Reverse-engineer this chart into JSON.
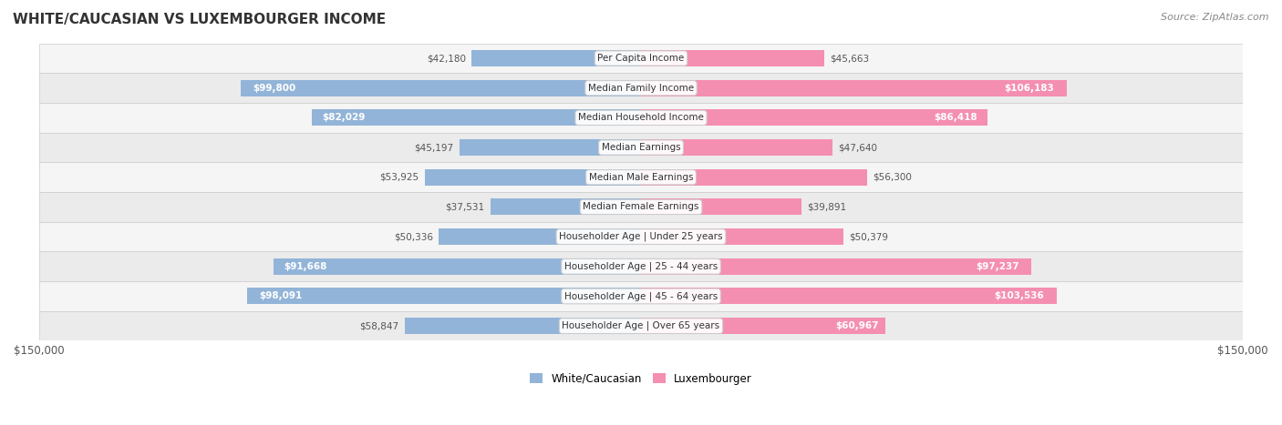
{
  "title": "WHITE/CAUCASIAN VS LUXEMBOURGER INCOME",
  "source": "Source: ZipAtlas.com",
  "categories": [
    "Per Capita Income",
    "Median Family Income",
    "Median Household Income",
    "Median Earnings",
    "Median Male Earnings",
    "Median Female Earnings",
    "Householder Age | Under 25 years",
    "Householder Age | 25 - 44 years",
    "Householder Age | 45 - 64 years",
    "Householder Age | Over 65 years"
  ],
  "white_values": [
    42180,
    99800,
    82029,
    45197,
    53925,
    37531,
    50336,
    91668,
    98091,
    58847
  ],
  "lux_values": [
    45663,
    106183,
    86418,
    47640,
    56300,
    39891,
    50379,
    97237,
    103536,
    60967
  ],
  "white_color": "#92b4d8",
  "lux_color": "#f48fb1",
  "white_label_color_inside": "#ffffff",
  "white_label_color_outside": "#555555",
  "lux_label_color_inside": "#ffffff",
  "lux_label_color_outside": "#555555",
  "inside_threshold": 60000,
  "background_color": "#ffffff",
  "row_bg_color": "#f0f0f0",
  "max_value": 150000,
  "xlabel": "$150,000",
  "xlabel_right": "$150,000",
  "legend_labels": [
    "White/Caucasian",
    "Luxembourger"
  ],
  "legend_colors": [
    "#92b4d8",
    "#f48fb1"
  ]
}
